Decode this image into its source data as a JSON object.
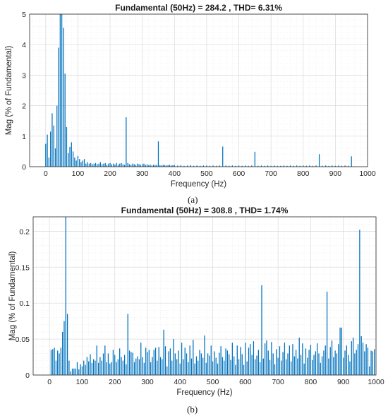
{
  "figure": {
    "captions": [
      "(a)",
      "(b)"
    ]
  },
  "chart_data": [
    {
      "type": "bar",
      "title": "Fundamental (50Hz) = 284.2 , THD= 6.31%",
      "xlabel": "Frequency (Hz)",
      "ylabel": "Mag (% of Fundamental)",
      "xlim": [
        -50,
        1000
      ],
      "ylim": [
        0,
        5
      ],
      "xticks": [
        0,
        100,
        200,
        300,
        400,
        500,
        600,
        700,
        800,
        900,
        1000
      ],
      "yticks": [
        0,
        1,
        2,
        3,
        4,
        5
      ],
      "grid": true,
      "minor_grid": true,
      "bar_color": "#0072BD",
      "x": [
        0,
        5,
        10,
        15,
        20,
        25,
        30,
        35,
        40,
        45,
        50,
        55,
        60,
        65,
        70,
        75,
        80,
        85,
        90,
        95,
        100,
        105,
        110,
        115,
        120,
        125,
        130,
        135,
        140,
        145,
        150,
        155,
        160,
        165,
        170,
        175,
        180,
        185,
        190,
        195,
        200,
        205,
        210,
        215,
        220,
        225,
        230,
        235,
        240,
        245,
        250,
        255,
        260,
        265,
        270,
        275,
        280,
        285,
        290,
        295,
        300,
        305,
        310,
        315,
        320,
        325,
        330,
        335,
        340,
        345,
        350,
        355,
        360,
        365,
        370,
        375,
        380,
        385,
        390,
        395,
        400,
        410,
        420,
        430,
        440,
        450,
        460,
        470,
        480,
        490,
        500,
        510,
        520,
        530,
        540,
        550,
        560,
        570,
        580,
        590,
        600,
        610,
        620,
        630,
        640,
        650,
        660,
        670,
        680,
        690,
        700,
        710,
        720,
        730,
        740,
        750,
        760,
        770,
        780,
        790,
        800,
        810,
        820,
        830,
        840,
        850,
        860,
        870,
        880,
        890,
        900,
        910,
        920,
        930,
        940,
        950
      ],
      "values": [
        0.75,
        1.05,
        0.3,
        1.15,
        1.75,
        1.35,
        0.6,
        2.0,
        3.9,
        5.0,
        5.0,
        4.55,
        3.05,
        1.3,
        0.45,
        0.65,
        0.8,
        0.5,
        0.3,
        0.2,
        0.35,
        0.25,
        0.15,
        0.2,
        0.25,
        0.1,
        0.15,
        0.1,
        0.12,
        0.08,
        0.1,
        0.12,
        0.08,
        0.1,
        0.15,
        0.08,
        0.1,
        0.12,
        0.06,
        0.1,
        0.12,
        0.08,
        0.1,
        0.07,
        0.12,
        0.06,
        0.1,
        0.12,
        0.08,
        0.06,
        1.62,
        0.12,
        0.08,
        0.06,
        0.1,
        0.08,
        0.06,
        0.1,
        0.08,
        0.06,
        0.08,
        0.1,
        0.06,
        0.08,
        0.05,
        0.06,
        0.04,
        0.06,
        0.05,
        0.06,
        0.83,
        0.05,
        0.04,
        0.06,
        0.05,
        0.04,
        0.05,
        0.06,
        0.04,
        0.05,
        0.05,
        0.04,
        0.05,
        0.03,
        0.04,
        0.05,
        0.03,
        0.04,
        0.03,
        0.04,
        0.04,
        0.03,
        0.04,
        0.03,
        0.04,
        0.66,
        0.04,
        0.03,
        0.04,
        0.03,
        0.04,
        0.03,
        0.04,
        0.03,
        0.04,
        0.49,
        0.03,
        0.04,
        0.03,
        0.04,
        0.03,
        0.04,
        0.03,
        0.03,
        0.04,
        0.03,
        0.04,
        0.03,
        0.04,
        0.03,
        0.04,
        0.03,
        0.04,
        0.03,
        0.04,
        0.41,
        0.03,
        0.04,
        0.03,
        0.04,
        0.03,
        0.04,
        0.03,
        0.04,
        0.03,
        0.34
      ]
    },
    {
      "type": "bar",
      "title": "Fundamental (50Hz) = 308.8 , THD= 1.74%",
      "xlabel": "Frequency (Hz)",
      "ylabel": "Mag (% of Fundamental)",
      "xlim": [
        -50,
        1000
      ],
      "ylim": [
        0,
        0.22
      ],
      "xticks": [
        0,
        100,
        200,
        300,
        400,
        500,
        600,
        700,
        800,
        900,
        1000
      ],
      "yticks": [
        0,
        0.05,
        0.1,
        0.15,
        0.2
      ],
      "ytick_labels": [
        "0",
        "0.05",
        "0.1",
        "0.15",
        "0.2"
      ],
      "grid": true,
      "minor_grid": true,
      "bar_color": "#0072BD",
      "x": [
        5,
        10,
        15,
        20,
        25,
        30,
        35,
        40,
        45,
        50,
        55,
        60,
        65,
        70,
        75,
        80,
        85,
        90,
        95,
        100,
        105,
        110,
        115,
        120,
        125,
        130,
        135,
        140,
        145,
        150,
        155,
        160,
        165,
        170,
        175,
        180,
        185,
        190,
        195,
        200,
        205,
        210,
        215,
        220,
        225,
        230,
        235,
        240,
        245,
        250,
        255,
        260,
        265,
        270,
        275,
        280,
        285,
        290,
        295,
        300,
        305,
        310,
        315,
        320,
        325,
        330,
        335,
        340,
        345,
        350,
        355,
        360,
        365,
        370,
        375,
        380,
        385,
        390,
        395,
        400,
        405,
        410,
        415,
        420,
        425,
        430,
        435,
        440,
        445,
        450,
        455,
        460,
        465,
        470,
        475,
        480,
        485,
        490,
        495,
        500,
        505,
        510,
        515,
        520,
        525,
        530,
        535,
        540,
        545,
        550,
        555,
        560,
        565,
        570,
        575,
        580,
        585,
        590,
        595,
        600,
        605,
        610,
        615,
        620,
        625,
        630,
        635,
        640,
        645,
        650,
        655,
        660,
        665,
        670,
        675,
        680,
        685,
        690,
        695,
        700,
        705,
        710,
        715,
        720,
        725,
        730,
        735,
        740,
        745,
        750,
        755,
        760,
        765,
        770,
        775,
        780,
        785,
        790,
        795,
        800,
        805,
        810,
        815,
        820,
        825,
        830,
        835,
        840,
        845,
        850,
        855,
        860,
        865,
        870,
        875,
        880,
        885,
        890,
        895,
        900,
        905,
        910,
        915,
        920,
        925,
        930,
        935,
        940,
        945,
        950,
        955,
        960,
        965,
        970,
        975,
        980,
        985,
        990,
        995
      ],
      "values": [
        0.035,
        0.036,
        0.038,
        0.02,
        0.034,
        0.03,
        0.038,
        0.06,
        0.075,
        0.22,
        0.085,
        0.02,
        0.005,
        0.009,
        0.009,
        0.009,
        0.018,
        0.008,
        0.015,
        0.012,
        0.02,
        0.014,
        0.025,
        0.019,
        0.029,
        0.017,
        0.022,
        0.02,
        0.041,
        0.017,
        0.025,
        0.02,
        0.03,
        0.041,
        0.018,
        0.03,
        0.016,
        0.018,
        0.035,
        0.028,
        0.018,
        0.022,
        0.037,
        0.025,
        0.02,
        0.028,
        0.015,
        0.085,
        0.034,
        0.032,
        0.031,
        0.018,
        0.023,
        0.026,
        0.022,
        0.045,
        0.025,
        0.017,
        0.038,
        0.032,
        0.035,
        0.018,
        0.025,
        0.035,
        0.038,
        0.02,
        0.039,
        0.025,
        0.022,
        0.063,
        0.04,
        0.012,
        0.033,
        0.037,
        0.02,
        0.05,
        0.03,
        0.022,
        0.034,
        0.016,
        0.045,
        0.022,
        0.038,
        0.03,
        0.018,
        0.041,
        0.023,
        0.049,
        0.016,
        0.026,
        0.02,
        0.035,
        0.03,
        0.024,
        0.055,
        0.017,
        0.03,
        0.027,
        0.041,
        0.019,
        0.033,
        0.024,
        0.016,
        0.031,
        0.04,
        0.025,
        0.02,
        0.037,
        0.034,
        0.029,
        0.021,
        0.045,
        0.026,
        0.014,
        0.041,
        0.022,
        0.039,
        0.029,
        0.014,
        0.045,
        0.019,
        0.038,
        0.043,
        0.028,
        0.047,
        0.022,
        0.027,
        0.035,
        0.018,
        0.125,
        0.023,
        0.044,
        0.048,
        0.034,
        0.021,
        0.046,
        0.03,
        0.015,
        0.036,
        0.024,
        0.04,
        0.02,
        0.032,
        0.045,
        0.022,
        0.03,
        0.041,
        0.019,
        0.043,
        0.026,
        0.035,
        0.023,
        0.052,
        0.028,
        0.044,
        0.016,
        0.037,
        0.024,
        0.035,
        0.042,
        0.021,
        0.028,
        0.033,
        0.044,
        0.03,
        0.017,
        0.026,
        0.034,
        0.041,
        0.116,
        0.023,
        0.039,
        0.048,
        0.025,
        0.034,
        0.03,
        0.043,
        0.066,
        0.066,
        0.024,
        0.034,
        0.041,
        0.028,
        0.019,
        0.047,
        0.052,
        0.03,
        0.035,
        0.043,
        0.202,
        0.054,
        0.045,
        0.033,
        0.043,
        0.038,
        0.012,
        0.034,
        0.033,
        0.036
      ]
    }
  ]
}
